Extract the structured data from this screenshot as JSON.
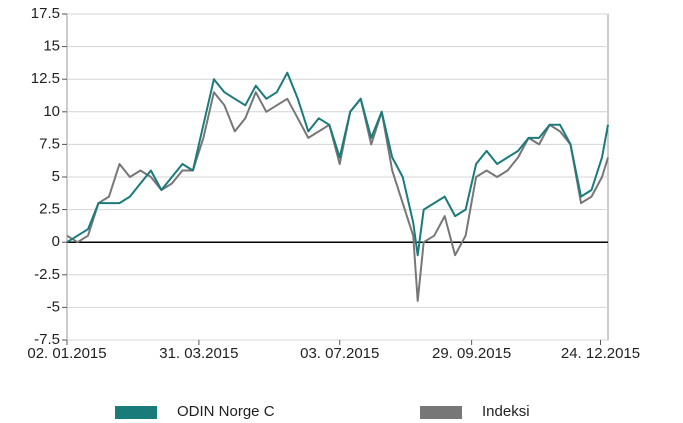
{
  "chart_data": {
    "type": "line",
    "x": [
      "2015-01-02",
      "2015-01-09",
      "2015-01-16",
      "2015-01-23",
      "2015-01-30",
      "2015-02-06",
      "2015-02-13",
      "2015-02-20",
      "2015-02-27",
      "2015-03-06",
      "2015-03-13",
      "2015-03-20",
      "2015-03-27",
      "2015-04-03",
      "2015-04-10",
      "2015-04-17",
      "2015-04-24",
      "2015-05-01",
      "2015-05-08",
      "2015-05-15",
      "2015-05-22",
      "2015-05-29",
      "2015-06-05",
      "2015-06-12",
      "2015-06-19",
      "2015-06-26",
      "2015-07-03",
      "2015-07-10",
      "2015-07-17",
      "2015-07-24",
      "2015-07-31",
      "2015-08-07",
      "2015-08-14",
      "2015-08-21",
      "2015-08-24",
      "2015-08-28",
      "2015-09-04",
      "2015-09-11",
      "2015-09-18",
      "2015-09-25",
      "2015-10-02",
      "2015-10-09",
      "2015-10-16",
      "2015-10-23",
      "2015-10-30",
      "2015-11-06",
      "2015-11-13",
      "2015-11-20",
      "2015-11-27",
      "2015-12-04",
      "2015-12-11",
      "2015-12-18",
      "2015-12-25",
      "2015-12-29"
    ],
    "series": [
      {
        "name": "ODIN Norge C",
        "color": "#1a7b7b",
        "values": [
          0,
          0.5,
          1,
          3,
          3,
          3,
          3.5,
          4.5,
          5.5,
          4,
          5,
          6,
          5.5,
          9,
          12.5,
          11.5,
          11,
          10.5,
          12,
          11,
          11.5,
          13,
          11,
          8.5,
          9.5,
          9,
          6.5,
          10,
          11,
          8,
          10,
          6.5,
          5,
          1.5,
          -1,
          2.5,
          3,
          3.5,
          2,
          2.5,
          6,
          7,
          6,
          6.5,
          7,
          8,
          8,
          9,
          9,
          7.5,
          3.5,
          4,
          6.5,
          9
        ]
      },
      {
        "name": "Indeksi",
        "color": "#777777",
        "values": [
          0.5,
          0,
          0.5,
          3,
          3.5,
          6,
          5,
          5.5,
          5,
          4,
          4.5,
          5.5,
          5.5,
          8,
          11.5,
          10.5,
          8.5,
          9.5,
          11.5,
          10,
          10.5,
          11,
          9.5,
          8,
          8.5,
          9,
          6,
          10,
          11,
          7.5,
          10,
          5.5,
          3,
          0.5,
          -4.5,
          0,
          0.5,
          2,
          -1,
          0.5,
          5,
          5.5,
          5,
          5.5,
          6.5,
          8,
          7.5,
          9,
          8.5,
          7.5,
          3,
          3.5,
          5,
          6.5
        ]
      }
    ],
    "xlim": [
      "2015-01-02",
      "2015-12-29"
    ],
    "xticks": [
      {
        "value": "2015-01-02",
        "label": "02. 01.2015"
      },
      {
        "value": "2015-03-31",
        "label": "31. 03.2015"
      },
      {
        "value": "2015-07-03",
        "label": "03. 07.2015"
      },
      {
        "value": "2015-09-29",
        "label": "29. 09.2015"
      },
      {
        "value": "2015-12-24",
        "label": "24. 12.2015"
      }
    ],
    "ylim": [
      -7.5,
      17.5
    ],
    "yticks": [
      -7.5,
      -5,
      -2.5,
      0,
      2.5,
      5,
      7.5,
      10,
      12.5,
      15,
      17.5
    ],
    "grid": true
  }
}
